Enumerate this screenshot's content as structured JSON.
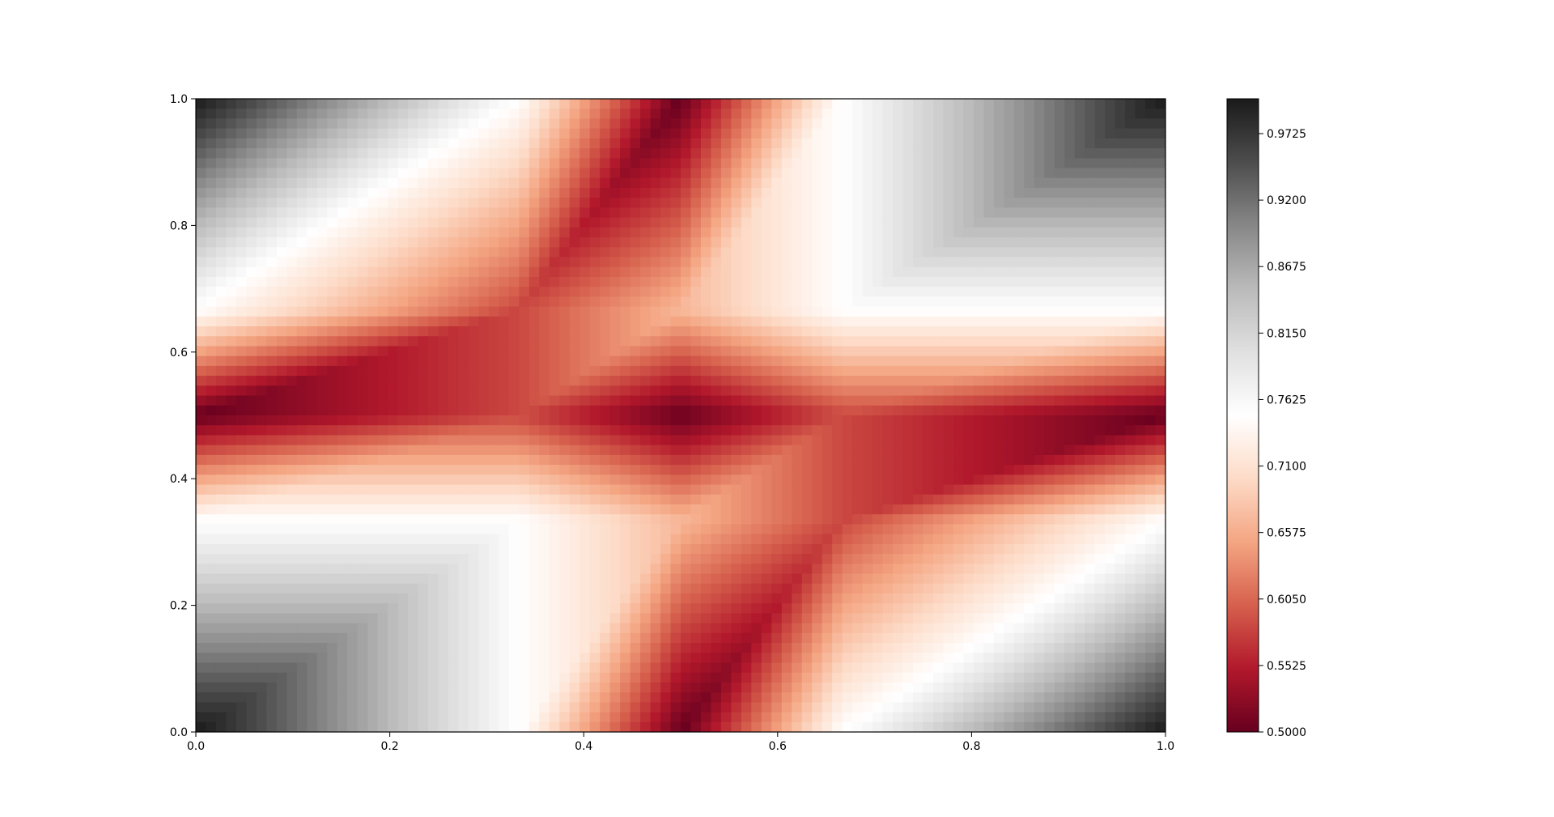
{
  "chart_data": {
    "type": "heatmap",
    "title": "",
    "xlabel": "",
    "ylabel": "",
    "xlim": [
      0.0,
      1.0
    ],
    "ylim": [
      0.0,
      1.0
    ],
    "x_ticks": [
      0.0,
      0.2,
      0.4,
      0.6,
      0.8,
      1.0
    ],
    "x_tick_labels": [
      "0.0",
      "0.2",
      "0.4",
      "0.6",
      "0.8",
      "1.0"
    ],
    "y_ticks": [
      0.0,
      0.2,
      0.4,
      0.6,
      0.8,
      1.0
    ],
    "y_tick_labels": [
      "0.0",
      "0.2",
      "0.4",
      "0.6",
      "0.8",
      "1.0"
    ],
    "grid": false,
    "colormap": "RdGy",
    "colorbar": {
      "position": "right",
      "range": [
        0.5,
        1.0
      ],
      "ticks": [
        0.5,
        0.5525,
        0.605,
        0.6575,
        0.71,
        0.7625,
        0.815,
        0.8675,
        0.92,
        0.9725
      ],
      "tick_labels": [
        "0.5000",
        "0.5525",
        "0.6050",
        "0.6575",
        "0.7100",
        "0.7625",
        "0.8150",
        "0.8675",
        "0.9200",
        "0.9725"
      ],
      "colors": [
        "#67001f",
        "#b2182b",
        "#d6604d",
        "#f4a582",
        "#fddbc7",
        "#ffffff",
        "#e0e0e0",
        "#bababa",
        "#878787",
        "#4d4d4d",
        "#1a1a1a"
      ]
    },
    "grid_vertices": {
      "x": [
        0.0,
        0.3333,
        0.5,
        0.6667,
        1.0
      ],
      "y": [
        0.0,
        0.3333,
        0.5,
        0.6667,
        1.0
      ],
      "values": [
        [
          1.0,
          0.75,
          0.5,
          0.75,
          1.0
        ],
        [
          0.75,
          0.75,
          0.6667,
          0.5833,
          0.75
        ],
        [
          0.5,
          0.5833,
          0.5,
          0.5833,
          0.5
        ],
        [
          0.75,
          0.5833,
          0.6667,
          0.75,
          0.75
        ],
        [
          1.0,
          0.75,
          0.5,
          0.75,
          1.0
        ]
      ]
    }
  }
}
